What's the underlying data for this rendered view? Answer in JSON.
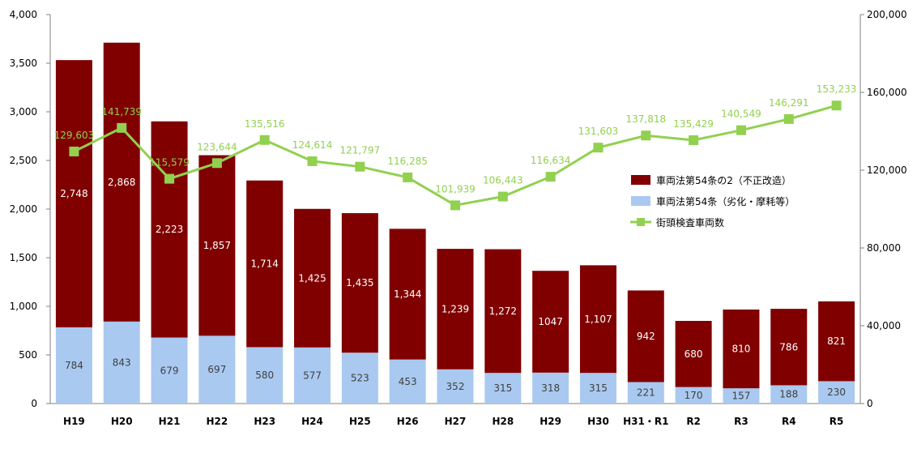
{
  "chart_data": {
    "type": "bar",
    "stacked": true,
    "categories": [
      "H19",
      "H20",
      "H21",
      "H22",
      "H23",
      "H24",
      "H25",
      "H26",
      "H27",
      "H28",
      "H29",
      "H30",
      "H31・R1",
      "R2",
      "R3",
      "R4",
      "R5"
    ],
    "series": [
      {
        "name": "車両法第54条（劣化・摩耗等）",
        "color": "#a9c9f0",
        "label_color": "#404040",
        "axis": "left",
        "values": [
          784,
          843,
          679,
          697,
          580,
          577,
          523,
          453,
          352,
          315,
          318,
          315,
          221,
          170,
          157,
          188,
          230
        ],
        "labels": [
          "784",
          "843",
          "679",
          "697",
          "580",
          "577",
          "523",
          "453",
          "352",
          "315",
          "318",
          "315",
          "221",
          "170",
          "157",
          "188",
          "230"
        ]
      },
      {
        "name": "車両法第54条の2（不正改造）",
        "color": "#800000",
        "label_color": "#ffffff",
        "axis": "left",
        "values": [
          2748,
          2868,
          2223,
          1857,
          1714,
          1425,
          1435,
          1344,
          1239,
          1272,
          1047,
          1107,
          942,
          680,
          810,
          786,
          821
        ],
        "labels": [
          "2,748",
          "2,868",
          "2,223",
          "1,857",
          "1,714",
          "1,425",
          "1,435",
          "1,344",
          "1,239",
          "1,272",
          "1047",
          "1,107",
          "942",
          "680",
          "810",
          "786",
          "821"
        ]
      },
      {
        "name": "街頭検査車両数",
        "type": "line",
        "color": "#92d050",
        "axis": "right",
        "values": [
          129603,
          141739,
          115579,
          123644,
          135516,
          124614,
          121797,
          116285,
          101939,
          106443,
          116634,
          131603,
          137818,
          135429,
          140549,
          146291,
          153233
        ],
        "labels": [
          "129,603",
          "141,739",
          "115,579",
          "123,644",
          "135,516",
          "124,614",
          "121,797",
          "116,285",
          "101,939",
          "106,443",
          "116,634",
          "131,603",
          "137,818",
          "135,429",
          "140,549",
          "146,291",
          "153,233"
        ]
      }
    ],
    "y_left": {
      "min": 0,
      "max": 4000,
      "step": 500,
      "ticks": [
        "0",
        "500",
        "1,000",
        "1,500",
        "2,000",
        "2,500",
        "3,000",
        "3,500",
        "4,000"
      ]
    },
    "y_right": {
      "min": 0,
      "max": 200000,
      "step": 40000,
      "ticks": [
        "0",
        "40,000",
        "80,000",
        "120,000",
        "160,000",
        "200,000"
      ]
    },
    "grid": false,
    "legend": {
      "position": "right-middle",
      "entries": [
        {
          "label": "車両法第54条の2（不正改造）",
          "color": "#800000",
          "kind": "box"
        },
        {
          "label": "車両法第54条（劣化・摩耗等）",
          "color": "#a9c9f0",
          "kind": "box"
        },
        {
          "label": "街頭検査車両数",
          "color": "#92d050",
          "kind": "line"
        }
      ]
    }
  }
}
